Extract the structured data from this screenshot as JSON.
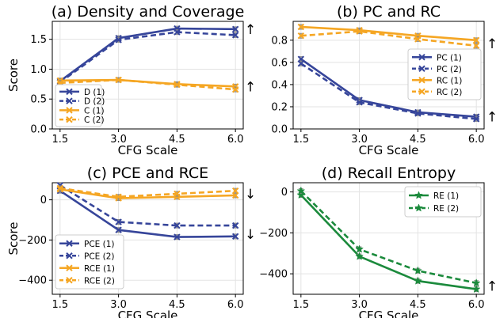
{
  "colors": {
    "blue": "#36459a",
    "orange": "#f5a623",
    "green": "#1b8a3c"
  },
  "chart_data": [
    {
      "type": "line",
      "title": "(a) Density and Coverage",
      "xlabel": "CFG Scale",
      "ylabel": "Score",
      "x": [
        1.5,
        3.0,
        4.5,
        6.0
      ],
      "xticks": [
        "1.5",
        "3.0",
        "4.5",
        "6.0"
      ],
      "yticks": [
        "0.0",
        "0.5",
        "1.0",
        "1.5"
      ],
      "ytick_values": [
        0.0,
        0.5,
        1.0,
        1.5
      ],
      "xlim": [
        1.3,
        6.2
      ],
      "ylim": [
        0.0,
        1.8
      ],
      "grid": true,
      "legend_position": "bottom-left",
      "series": [
        {
          "name": "D (1)",
          "values": [
            0.8,
            1.52,
            1.68,
            1.67
          ],
          "color": "#36459a",
          "dash": "solid",
          "marker": "x",
          "errorbar": true
        },
        {
          "name": "D (2)",
          "values": [
            0.78,
            1.49,
            1.62,
            1.57
          ],
          "color": "#36459a",
          "dash": "dashed",
          "marker": "x",
          "errorbar": true
        },
        {
          "name": "C (1)",
          "values": [
            0.81,
            0.82,
            0.75,
            0.71
          ],
          "color": "#f5a623",
          "dash": "solid",
          "marker": "x",
          "errorbar": true
        },
        {
          "name": "C (2)",
          "values": [
            0.77,
            0.82,
            0.74,
            0.66
          ],
          "color": "#f5a623",
          "dash": "dashed",
          "marker": "x",
          "errorbar": true
        }
      ],
      "annotations": [
        {
          "text": "↑",
          "at_value": 1.67
        },
        {
          "text": "↑",
          "at_value": 0.71
        }
      ]
    },
    {
      "type": "line",
      "title": "(b) PC and RC",
      "xlabel": "CFG Scale",
      "ylabel": "",
      "x": [
        1.5,
        3.0,
        4.5,
        6.0
      ],
      "xticks": [
        "1.5",
        "3.0",
        "4.5",
        "6.0"
      ],
      "yticks": [
        "0.0",
        "0.2",
        "0.4",
        "0.6",
        "0.8"
      ],
      "ytick_values": [
        0.0,
        0.2,
        0.4,
        0.6,
        0.8
      ],
      "xlim": [
        1.3,
        6.2
      ],
      "ylim": [
        0.0,
        0.97
      ],
      "grid": true,
      "legend_position": "center-right",
      "series": [
        {
          "name": "PC (1)",
          "values": [
            0.63,
            0.26,
            0.15,
            0.11
          ],
          "color": "#36459a",
          "dash": "solid",
          "marker": "x",
          "errorbar": true
        },
        {
          "name": "PC (2)",
          "values": [
            0.59,
            0.24,
            0.14,
            0.09
          ],
          "color": "#36459a",
          "dash": "dashed",
          "marker": "x",
          "errorbar": true
        },
        {
          "name": "RC (1)",
          "values": [
            0.92,
            0.89,
            0.84,
            0.8
          ],
          "color": "#f5a623",
          "dash": "solid",
          "marker": "x",
          "errorbar": true
        },
        {
          "name": "RC (2)",
          "values": [
            0.84,
            0.88,
            0.81,
            0.75
          ],
          "color": "#f5a623",
          "dash": "dashed",
          "marker": "x",
          "errorbar": true
        }
      ],
      "annotations": [
        {
          "text": "↑",
          "at_value": 0.77
        },
        {
          "text": "↑",
          "at_value": 0.11
        }
      ]
    },
    {
      "type": "line",
      "title": "(c) PCE and RCE",
      "xlabel": "CFG Scale",
      "ylabel": "Score",
      "x": [
        1.5,
        3.0,
        4.5,
        6.0
      ],
      "xticks": [
        "1.5",
        "3.0",
        "4.5",
        "6.0"
      ],
      "yticks": [
        "−400",
        "−200",
        "0"
      ],
      "ytick_values": [
        -400,
        -200,
        0
      ],
      "xlim": [
        1.3,
        6.2
      ],
      "ylim": [
        -470,
        85
      ],
      "grid": true,
      "legend_position": "bottom-left",
      "series": [
        {
          "name": "PCE (1)",
          "values": [
            45,
            -150,
            -185,
            -182
          ],
          "color": "#36459a",
          "dash": "solid",
          "marker": "x",
          "errorbar": true
        },
        {
          "name": "PCE (2)",
          "values": [
            72,
            -110,
            -128,
            -128
          ],
          "color": "#36459a",
          "dash": "dashed",
          "marker": "x",
          "errorbar": true
        },
        {
          "name": "RCE (1)",
          "values": [
            52,
            8,
            15,
            22
          ],
          "color": "#f5a623",
          "dash": "solid",
          "marker": "x",
          "errorbar": true
        },
        {
          "name": "RCE (2)",
          "values": [
            58,
            15,
            30,
            45
          ],
          "color": "#f5a623",
          "dash": "dashed",
          "marker": "x",
          "errorbar": true
        }
      ],
      "annotations": [
        {
          "text": "↓",
          "at_value": 30
        },
        {
          "text": "↓",
          "at_value": -170
        }
      ]
    },
    {
      "type": "line",
      "title": "(d) Recall Entropy",
      "xlabel": "CFG Scale",
      "ylabel": "",
      "x": [
        1.5,
        3.0,
        4.5,
        6.0
      ],
      "xticks": [
        "1.5",
        "3.0",
        "4.5",
        "6.0"
      ],
      "yticks": [
        "−400",
        "−200",
        "0"
      ],
      "ytick_values": [
        -400,
        -200,
        0
      ],
      "xlim": [
        1.3,
        6.2
      ],
      "ylim": [
        -500,
        45
      ],
      "grid": true,
      "legend_position": "top-right",
      "series": [
        {
          "name": "RE (1)",
          "values": [
            -15,
            -315,
            -435,
            -475
          ],
          "color": "#1b8a3c",
          "dash": "solid",
          "marker": "*",
          "errorbar": true
        },
        {
          "name": "RE (2)",
          "values": [
            5,
            -280,
            -385,
            -445
          ],
          "color": "#1b8a3c",
          "dash": "dashed",
          "marker": "*",
          "errorbar": true
        }
      ],
      "annotations": [
        {
          "text": "↑",
          "at_value": -460
        }
      ]
    }
  ]
}
